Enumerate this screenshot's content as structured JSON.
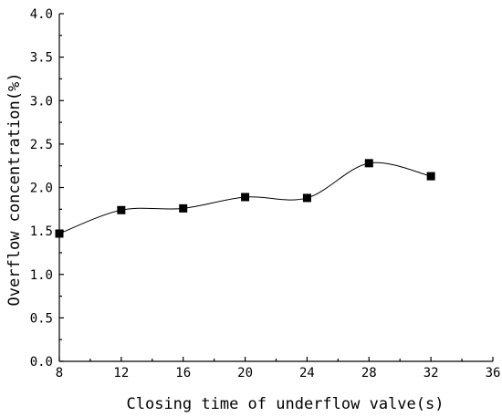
{
  "chart_data": {
    "type": "line",
    "xlabel": "Closing time of underflow valve(s)",
    "ylabel": "Overflow concentration(%)",
    "xlim": [
      8,
      36
    ],
    "ylim": [
      0.0,
      4.0
    ],
    "x_ticks": [
      8,
      12,
      16,
      20,
      24,
      28,
      32,
      36
    ],
    "y_ticks": [
      "0.0",
      "0.5",
      "1.0",
      "1.5",
      "2.0",
      "2.5",
      "3.0",
      "3.5",
      "4.0"
    ],
    "series": [
      {
        "marker": "square",
        "smooth": true,
        "color": "#000000",
        "x": [
          8,
          12,
          16,
          20,
          24,
          28,
          32
        ],
        "y": [
          1.47,
          1.74,
          1.76,
          1.89,
          1.88,
          2.28,
          2.13
        ]
      }
    ],
    "grid": false,
    "legend": "none"
  }
}
